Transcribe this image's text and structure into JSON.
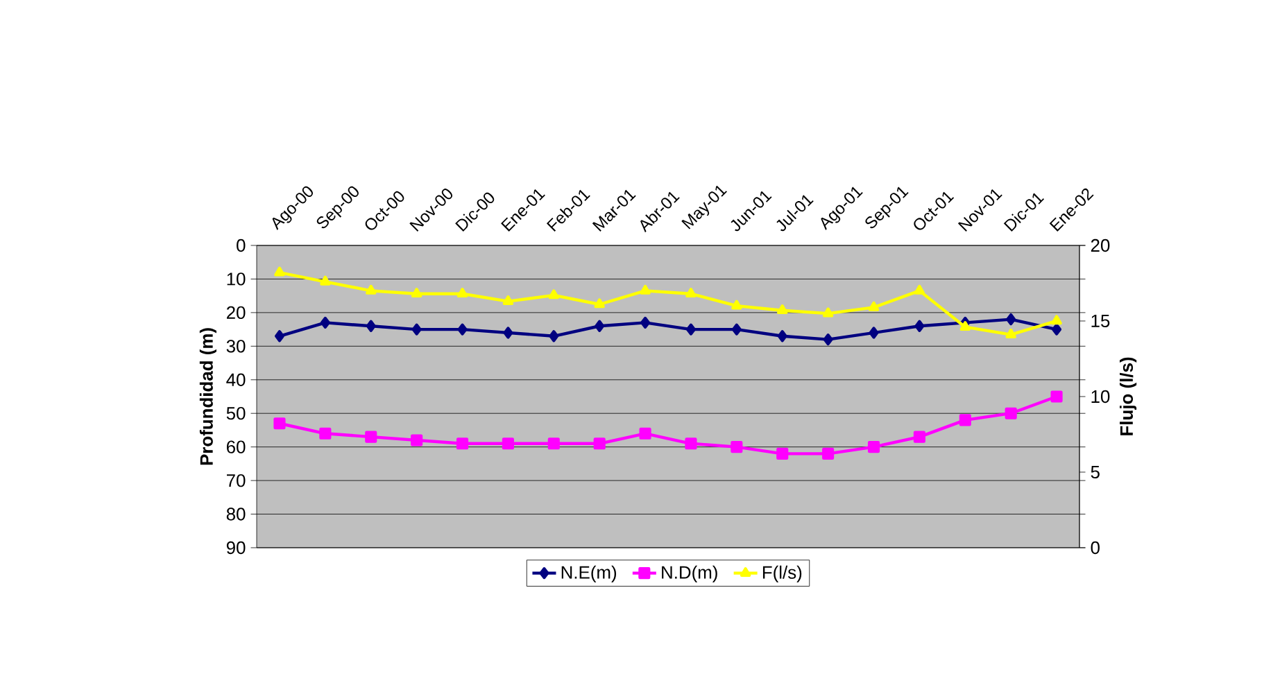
{
  "chart_data": {
    "type": "line",
    "ylabel": "Profundidad (m)",
    "y2label": "Flujo (l/s)",
    "categories": [
      "Ago-00",
      "Sep-00",
      "Oct-00",
      "Nov-00",
      "Dic-00",
      "Ene-01",
      "Feb-01",
      "Mar-01",
      "Abr-01",
      "May-01",
      "Jun-01",
      "Jul-01",
      "Ago-01",
      "Sep-01",
      "Oct-01",
      "Nov-01",
      "Dic-01",
      "Ene-02"
    ],
    "series": [
      {
        "name": "N.E(m)",
        "color": "#000080",
        "marker": "diamond",
        "values": [
          27,
          23,
          24,
          25,
          25,
          26,
          27,
          24,
          23,
          25,
          25,
          27,
          28,
          26,
          24,
          23,
          22,
          25
        ]
      },
      {
        "name": "N.D(m)",
        "color": "#ff00ff",
        "marker": "square",
        "values": [
          53,
          56,
          57,
          58,
          59,
          59,
          59,
          59,
          56,
          59,
          60,
          62,
          62,
          60,
          57,
          52,
          50,
          45
        ]
      },
      {
        "name": "F(l/s)",
        "color": "#ffff00",
        "marker": "triangle",
        "axis": "y2",
        "values": [
          18.2,
          17.6,
          17,
          16.8,
          16.8,
          16.3,
          16.7,
          16.1,
          17,
          16.8,
          16,
          15.7,
          15.5,
          15.9,
          17,
          14.6,
          14.1,
          15
        ]
      }
    ],
    "ylim": [
      90,
      0
    ],
    "yticks": [
      0,
      10,
      20,
      30,
      40,
      50,
      60,
      70,
      80,
      90
    ],
    "y2lim": [
      0,
      20
    ],
    "y2ticks": [
      0,
      5,
      10,
      15,
      20
    ],
    "grid": "y",
    "legend": "bottom"
  }
}
